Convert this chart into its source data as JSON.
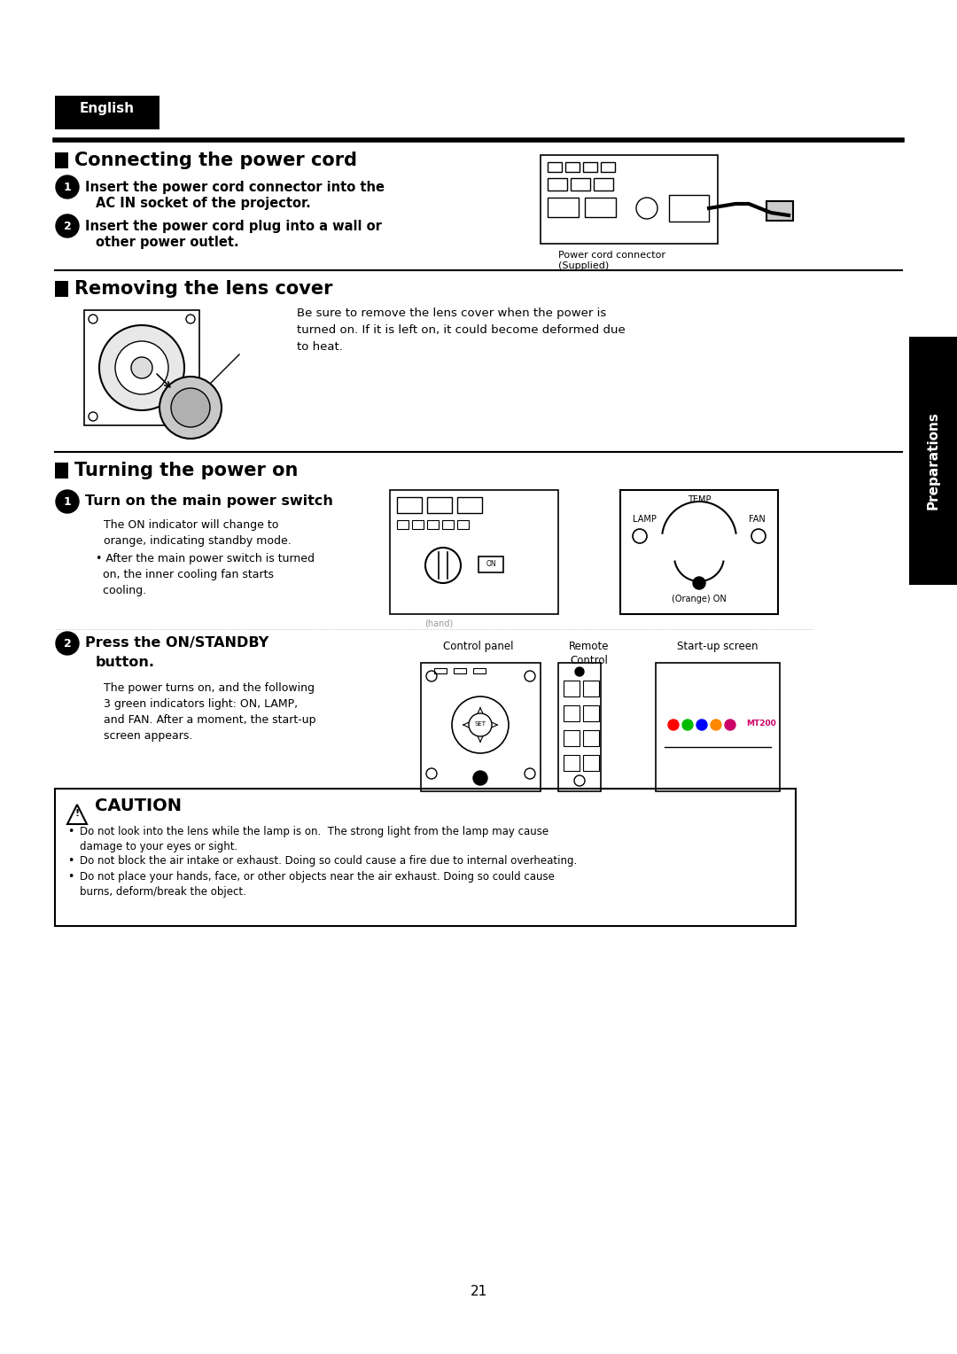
{
  "bg_color": "#ffffff",
  "page_number": "21",
  "english_label": "English",
  "section1_title": "Connecting the power cord",
  "section1_step1_line1": "Insert the power cord connector into the",
  "section1_step1_line2": "AC IN socket of the projector.",
  "section1_step2_line1": "Insert the power cord plug into a wall or",
  "section1_step2_line2": "other power outlet.",
  "section1_img_caption1": "Power cord connector",
  "section1_img_caption2": "(Supplied)",
  "section2_title": "Removing the lens cover",
  "section2_body": "Be sure to remove the lens cover when the power is\nturned on. If it is left on, it could become deformed due\nto heat.",
  "section3_title": "Turning the power on",
  "section3_step1_bold": "Turn on the main power switch",
  "section3_step1_body1": "The ON indicator will change to\norange, indicating standby mode.",
  "section3_step1_body2": "• After the main power switch is turned\n  on, the inner cooling fan starts\n  cooling.",
  "section3_step2_line1": "Press the ON/STANDBY",
  "section3_step2_line2": "button.",
  "section3_step2_body": "The power turns on, and the following\n3 green indicators light: ON, LAMP,\nand FAN. After a moment, the start-up\nscreen appears.",
  "label_control_panel": "Control panel",
  "label_remote": "Remote\nControl",
  "label_startup": "Start-up screen",
  "caution_title": "CAUTION",
  "caution_bullets": [
    "Do not look into the lens while the lamp is on.  The strong light from the lamp may cause\ndamage to your eyes or sight.",
    "Do not block the air intake or exhaust. Doing so could cause a fire due to internal overheating.",
    "Do not place your hands, face, or other objects near the air exhaust. Doing so could cause\nburns, deform/break the object."
  ],
  "preparations_label": "Preparations",
  "side_tab_color": "#000000",
  "side_tab_text_color": "#ffffff"
}
